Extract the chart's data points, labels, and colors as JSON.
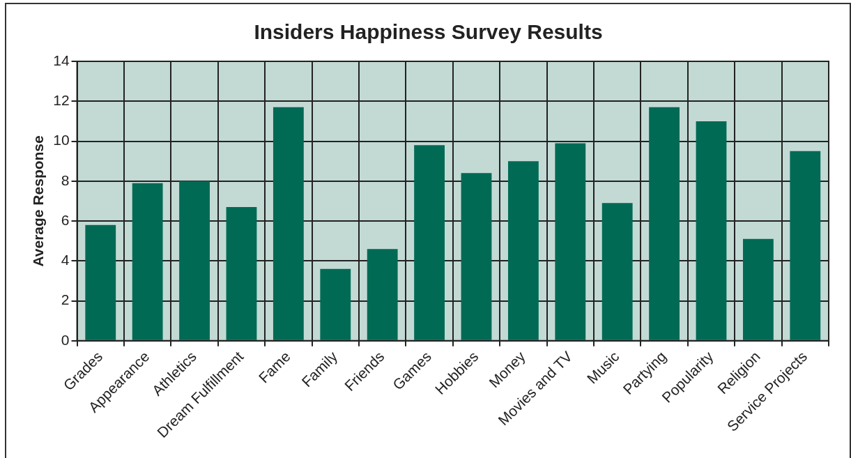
{
  "chart_data": {
    "type": "bar",
    "title": "Insiders Happiness Survey Results",
    "ylabel": "Average Response",
    "categories": [
      "Grades",
      "Appearance",
      "Athletics",
      "Dream Fulfillment",
      "Fame",
      "Family",
      "Friends",
      "Games",
      "Hobbies",
      "Money",
      "Movies and TV",
      "Music",
      "Partying",
      "Popularity",
      "Religion",
      "Service Projects"
    ],
    "values": [
      5.8,
      7.9,
      8.0,
      6.7,
      11.7,
      3.6,
      4.6,
      9.8,
      8.4,
      9.0,
      9.9,
      6.9,
      11.7,
      11.0,
      5.1,
      9.5
    ],
    "color": "#006a55",
    "ylim": [
      0,
      14
    ],
    "yticks": [
      0,
      2,
      4,
      6,
      8,
      10,
      12,
      14
    ],
    "grid": true
  }
}
